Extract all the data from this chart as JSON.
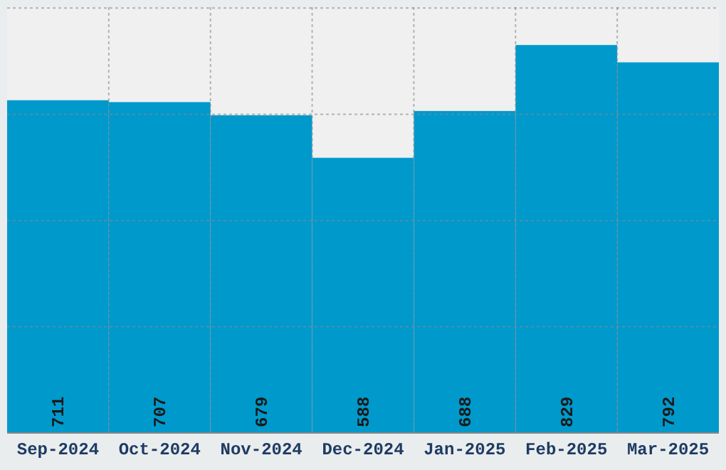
{
  "chart_data": {
    "type": "bar",
    "categories": [
      "Sep-2024",
      "Oct-2024",
      "Nov-2024",
      "Dec-2024",
      "Jan-2025",
      "Feb-2025",
      "Mar-2025"
    ],
    "values": [
      711,
      707,
      679,
      588,
      688,
      829,
      792
    ],
    "color": "#0099cc",
    "data_labels": true,
    "grid": true,
    "tick_labels": "x",
    "ylim": [
      0,
      910
    ],
    "yticks": [
      {
        "value": 0,
        "label": null
      },
      {
        "value": 227,
        "label": null
      },
      {
        "value": 454,
        "label": null
      },
      {
        "value": 681,
        "label": null
      },
      {
        "value": 908,
        "label": null
      }
    ]
  }
}
